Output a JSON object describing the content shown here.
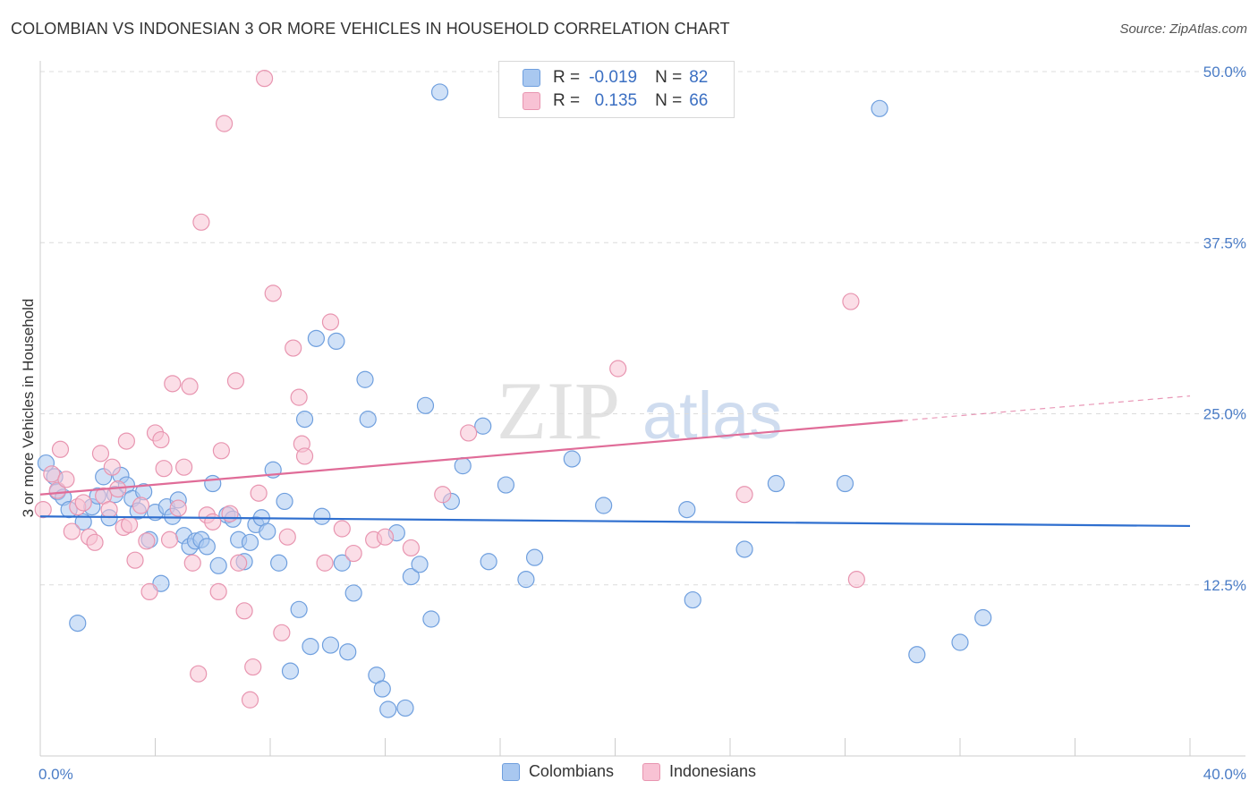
{
  "title": "COLOMBIAN VS INDONESIAN 3 OR MORE VEHICLES IN HOUSEHOLD CORRELATION CHART",
  "source": "Source: ZipAtlas.com",
  "watermark": {
    "zip": "ZIP",
    "atlas": "atlas"
  },
  "legend": {
    "rows": [
      {
        "r_label": "R =",
        "r_value": "-0.019",
        "n_label": "N =",
        "n_value": "82",
        "color": "#a9c8f0",
        "border": "#6f9fde"
      },
      {
        "r_label": "R =",
        "r_value": "0.135",
        "n_label": "N =",
        "n_value": "66",
        "color": "#f8c2d4",
        "border": "#e895b0"
      }
    ]
  },
  "chart_data": {
    "type": "scatter",
    "title": "COLOMBIAN VS INDONESIAN 3 OR MORE VEHICLES IN HOUSEHOLD CORRELATION CHART",
    "xlabel": "",
    "ylabel": "3 or more Vehicles in Household",
    "xlim": [
      0,
      40
    ],
    "ylim": [
      0,
      50
    ],
    "x_tick_labels": [
      "0.0%",
      "40.0%"
    ],
    "y_ticks": [
      12.5,
      25.0,
      37.5,
      50.0
    ],
    "y_tick_labels": [
      "12.5%",
      "25.0%",
      "37.5%",
      "50.0%"
    ],
    "grid": "horizontal dashed",
    "legend_placement": "bottom",
    "series": [
      {
        "name": "Colombians",
        "color": "#6f9fde",
        "fill": "#a9c8f0",
        "trend": {
          "x0": 0,
          "y0": 17.5,
          "x1": 40,
          "y1": 16.8
        },
        "points": [
          [
            0.2,
            21.4
          ],
          [
            0.5,
            20.4
          ],
          [
            0.6,
            19.3
          ],
          [
            0.8,
            18.9
          ],
          [
            1.0,
            18.0
          ],
          [
            1.5,
            17.1
          ],
          [
            1.3,
            9.7
          ],
          [
            1.8,
            18.2
          ],
          [
            2.0,
            19.0
          ],
          [
            2.2,
            20.4
          ],
          [
            2.4,
            17.4
          ],
          [
            2.6,
            19.1
          ],
          [
            2.8,
            20.5
          ],
          [
            3.0,
            19.8
          ],
          [
            3.2,
            18.8
          ],
          [
            3.4,
            17.9
          ],
          [
            3.6,
            19.3
          ],
          [
            3.8,
            15.8
          ],
          [
            4.0,
            17.8
          ],
          [
            4.2,
            12.6
          ],
          [
            4.4,
            18.2
          ],
          [
            4.6,
            17.5
          ],
          [
            4.8,
            18.7
          ],
          [
            5.0,
            16.1
          ],
          [
            5.2,
            15.3
          ],
          [
            5.4,
            15.7
          ],
          [
            5.6,
            15.8
          ],
          [
            5.8,
            15.3
          ],
          [
            6.0,
            19.9
          ],
          [
            6.2,
            13.9
          ],
          [
            6.5,
            17.6
          ],
          [
            6.7,
            17.3
          ],
          [
            6.9,
            15.8
          ],
          [
            7.1,
            14.2
          ],
          [
            7.3,
            15.6
          ],
          [
            7.5,
            16.9
          ],
          [
            7.7,
            17.4
          ],
          [
            7.9,
            16.4
          ],
          [
            8.1,
            20.9
          ],
          [
            8.3,
            14.1
          ],
          [
            8.5,
            18.6
          ],
          [
            8.7,
            6.2
          ],
          [
            9.0,
            10.7
          ],
          [
            9.2,
            24.6
          ],
          [
            9.4,
            8.0
          ],
          [
            9.6,
            30.5
          ],
          [
            9.8,
            17.5
          ],
          [
            10.1,
            8.1
          ],
          [
            10.3,
            30.3
          ],
          [
            10.5,
            14.1
          ],
          [
            10.7,
            7.6
          ],
          [
            10.9,
            11.9
          ],
          [
            11.3,
            27.5
          ],
          [
            11.4,
            24.6
          ],
          [
            11.7,
            5.9
          ],
          [
            11.9,
            4.9
          ],
          [
            12.1,
            3.4
          ],
          [
            12.4,
            16.3
          ],
          [
            12.7,
            3.5
          ],
          [
            12.9,
            13.1
          ],
          [
            13.2,
            14.0
          ],
          [
            13.4,
            25.6
          ],
          [
            13.6,
            10.0
          ],
          [
            13.9,
            48.5
          ],
          [
            14.3,
            18.6
          ],
          [
            14.7,
            21.2
          ],
          [
            15.4,
            24.1
          ],
          [
            15.6,
            14.2
          ],
          [
            16.2,
            19.8
          ],
          [
            16.9,
            12.9
          ],
          [
            17.2,
            14.5
          ],
          [
            18.5,
            21.7
          ],
          [
            19.6,
            18.3
          ],
          [
            22.5,
            18.0
          ],
          [
            22.7,
            11.4
          ],
          [
            24.5,
            15.1
          ],
          [
            25.6,
            19.9
          ],
          [
            28.0,
            19.9
          ],
          [
            29.2,
            47.3
          ],
          [
            30.5,
            7.4
          ],
          [
            32.0,
            8.3
          ],
          [
            32.8,
            10.1
          ]
        ]
      },
      {
        "name": "Indonesians",
        "color": "#e895b0",
        "fill": "#f8c2d4",
        "trend": {
          "x0": 0,
          "y0": 19.1,
          "x1": 30,
          "y1": 24.5,
          "dashed_to": {
            "x": 40,
            "y": 26.3
          }
        },
        "points": [
          [
            0.1,
            18.0
          ],
          [
            0.4,
            20.6
          ],
          [
            0.6,
            19.4
          ],
          [
            0.7,
            22.4
          ],
          [
            0.9,
            20.2
          ],
          [
            1.1,
            16.4
          ],
          [
            1.3,
            18.2
          ],
          [
            1.5,
            18.5
          ],
          [
            1.7,
            16.0
          ],
          [
            1.9,
            15.6
          ],
          [
            2.1,
            22.1
          ],
          [
            2.2,
            19.0
          ],
          [
            2.4,
            18.0
          ],
          [
            2.5,
            21.1
          ],
          [
            2.7,
            19.5
          ],
          [
            2.9,
            16.7
          ],
          [
            3.0,
            23.0
          ],
          [
            3.1,
            16.9
          ],
          [
            3.3,
            14.3
          ],
          [
            3.5,
            18.3
          ],
          [
            3.7,
            15.7
          ],
          [
            3.8,
            12.0
          ],
          [
            4.0,
            23.6
          ],
          [
            4.2,
            23.1
          ],
          [
            4.3,
            21.0
          ],
          [
            4.5,
            15.8
          ],
          [
            4.6,
            27.2
          ],
          [
            4.8,
            18.1
          ],
          [
            5.0,
            21.1
          ],
          [
            5.2,
            27.0
          ],
          [
            5.3,
            14.1
          ],
          [
            5.5,
            6.0
          ],
          [
            5.6,
            39.0
          ],
          [
            5.8,
            17.6
          ],
          [
            6.0,
            17.1
          ],
          [
            6.2,
            12.0
          ],
          [
            6.3,
            22.3
          ],
          [
            6.4,
            46.2
          ],
          [
            6.6,
            17.7
          ],
          [
            6.8,
            27.4
          ],
          [
            6.9,
            14.1
          ],
          [
            7.1,
            10.6
          ],
          [
            7.3,
            4.1
          ],
          [
            7.4,
            6.5
          ],
          [
            7.6,
            19.2
          ],
          [
            7.8,
            49.5
          ],
          [
            8.1,
            33.8
          ],
          [
            8.4,
            9.0
          ],
          [
            8.6,
            16.0
          ],
          [
            8.8,
            29.8
          ],
          [
            9.0,
            26.2
          ],
          [
            9.1,
            22.8
          ],
          [
            9.2,
            21.9
          ],
          [
            9.9,
            14.1
          ],
          [
            10.1,
            31.7
          ],
          [
            10.5,
            16.6
          ],
          [
            10.9,
            14.8
          ],
          [
            11.6,
            15.8
          ],
          [
            12.0,
            16.0
          ],
          [
            12.9,
            15.2
          ],
          [
            14.0,
            19.1
          ],
          [
            14.9,
            23.6
          ],
          [
            20.1,
            28.3
          ],
          [
            24.5,
            19.1
          ],
          [
            28.2,
            33.2
          ],
          [
            28.4,
            12.9
          ]
        ]
      }
    ]
  }
}
